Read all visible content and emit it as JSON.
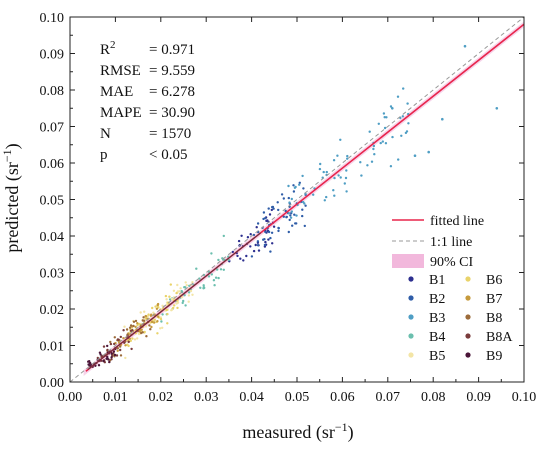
{
  "chart_data": {
    "type": "scatter",
    "xlabel_main": "measured (sr",
    "xlabel_sup": "−1",
    "xlabel_end": ")",
    "ylabel_main": "predicted (sr",
    "ylabel_sup": "−1",
    "ylabel_end": ")",
    "xlim": [
      0.0,
      0.1
    ],
    "ylim": [
      0.0,
      0.1
    ],
    "x_ticks": [
      "0.00",
      "0.01",
      "0.02",
      "0.03",
      "0.04",
      "0.05",
      "0.06",
      "0.07",
      "0.08",
      "0.09",
      "0.10"
    ],
    "y_ticks": [
      "0.00",
      "0.01",
      "0.02",
      "0.03",
      "0.04",
      "0.05",
      "0.06",
      "0.07",
      "0.08",
      "0.09",
      "0.10"
    ],
    "grid": false,
    "stats": [
      {
        "label": "R",
        "sup": "2",
        "value": "= 0.971"
      },
      {
        "label": "RMSE",
        "sup": "",
        "value": "= 9.559"
      },
      {
        "label": "MAE",
        "sup": "",
        "value": "= 6.278"
      },
      {
        "label": "MAPE",
        "sup": "",
        "value": "= 30.90"
      },
      {
        "label": "N",
        "sup": "",
        "value": "= 1570"
      },
      {
        "label": "p",
        "sup": "",
        "value": "< 0.05"
      }
    ],
    "fitted_line": {
      "label": "fitted line",
      "color": "#e8254c",
      "slope": 0.985,
      "intercept": -0.0005
    },
    "identity_line": {
      "label": "1:1 line",
      "color": "#999999"
    },
    "ci_band": {
      "label": "90% CI",
      "color": "#f2b8dc"
    },
    "legend_position": "bottom-right",
    "series": [
      {
        "name": "B1",
        "color": "#2d2f8f",
        "x_range": [
          0.035,
          0.045
        ],
        "n": 40
      },
      {
        "name": "B2",
        "color": "#2f5da8",
        "x_range": [
          0.04,
          0.052
        ],
        "n": 60
      },
      {
        "name": "B3",
        "color": "#4f9ec4",
        "x_range": [
          0.048,
          0.075
        ],
        "n": 70
      },
      {
        "name": "B4",
        "color": "#6bbfae",
        "x_range": [
          0.02,
          0.035
        ],
        "n": 50
      },
      {
        "name": "B5",
        "color": "#f3e5a6",
        "x_range": [
          0.012,
          0.028
        ],
        "n": 70
      },
      {
        "name": "B6",
        "color": "#e9d36a",
        "x_range": [
          0.012,
          0.024
        ],
        "n": 50
      },
      {
        "name": "B7",
        "color": "#c69a3c",
        "x_range": [
          0.01,
          0.02
        ],
        "n": 40
      },
      {
        "name": "B8",
        "color": "#9c6b3a",
        "x_range": [
          0.008,
          0.018
        ],
        "n": 35
      },
      {
        "name": "B8A",
        "color": "#7a3b3b",
        "x_range": [
          0.006,
          0.014
        ],
        "n": 35
      },
      {
        "name": "B9",
        "color": "#4a1538",
        "x_range": [
          0.004,
          0.01
        ],
        "n": 35
      }
    ]
  }
}
